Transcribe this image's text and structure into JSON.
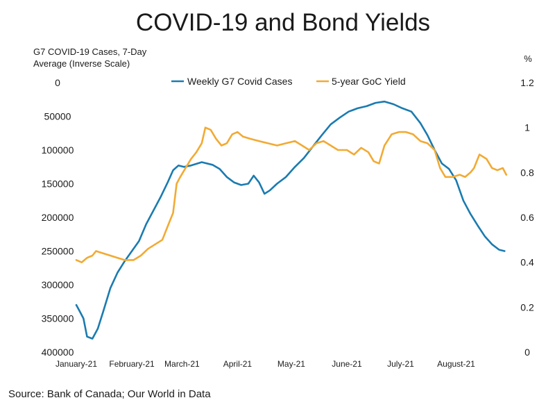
{
  "chart_data": {
    "type": "line",
    "title": "COVID-19 and Bond Yields",
    "ylabel_left": [
      "G7 COVID-19 Cases, 7-Day",
      "Average (Inverse Scale)"
    ],
    "ylabel_right": "%",
    "source": "Source: Bank of Canada; Our World in Data",
    "legend_position": "top",
    "grid": false,
    "x_range": [
      "2021-01-01",
      "2021-08-31"
    ],
    "x_ticks": [
      {
        "label": "January-21",
        "date": "2021-01-01"
      },
      {
        "label": "February-21",
        "date": "2021-02-01"
      },
      {
        "label": "March-21",
        "date": "2021-03-01"
      },
      {
        "label": "April-21",
        "date": "2021-04-01"
      },
      {
        "label": "May-21",
        "date": "2021-05-01"
      },
      {
        "label": "June-21",
        "date": "2021-06-01"
      },
      {
        "label": "July-21",
        "date": "2021-07-01"
      },
      {
        "label": "August-21",
        "date": "2021-08-01"
      }
    ],
    "y_left": {
      "inverse": true,
      "range": [
        0,
        400000
      ],
      "ticks": [
        "0",
        "50000",
        "100000",
        "150000",
        "200000",
        "250000",
        "300000",
        "350000",
        "400000"
      ]
    },
    "y_right": {
      "range": [
        0,
        1.2
      ],
      "ticks": [
        "0",
        "0.2",
        "0.4",
        "0.6",
        "0.8",
        "1",
        "1.2"
      ]
    },
    "series": [
      {
        "name": "Weekly G7 Covid Cases",
        "axis": "left",
        "color": "#1a7bb0",
        "points": [
          [
            "2021-01-01",
            330000
          ],
          [
            "2021-01-03",
            340000
          ],
          [
            "2021-01-05",
            350000
          ],
          [
            "2021-01-07",
            377000
          ],
          [
            "2021-01-10",
            380000
          ],
          [
            "2021-01-13",
            365000
          ],
          [
            "2021-01-16",
            340000
          ],
          [
            "2021-01-20",
            305000
          ],
          [
            "2021-01-24",
            282000
          ],
          [
            "2021-01-28",
            265000
          ],
          [
            "2021-02-01",
            250000
          ],
          [
            "2021-02-05",
            235000
          ],
          [
            "2021-02-09",
            210000
          ],
          [
            "2021-02-13",
            190000
          ],
          [
            "2021-02-17",
            170000
          ],
          [
            "2021-02-21",
            148000
          ],
          [
            "2021-02-24",
            130000
          ],
          [
            "2021-02-27",
            123000
          ],
          [
            "2021-03-02",
            125000
          ],
          [
            "2021-03-06",
            123000
          ],
          [
            "2021-03-12",
            118000
          ],
          [
            "2021-03-18",
            122000
          ],
          [
            "2021-03-22",
            128000
          ],
          [
            "2021-03-26",
            140000
          ],
          [
            "2021-03-30",
            148000
          ],
          [
            "2021-04-03",
            152000
          ],
          [
            "2021-04-07",
            150000
          ],
          [
            "2021-04-10",
            138000
          ],
          [
            "2021-04-13",
            148000
          ],
          [
            "2021-04-16",
            165000
          ],
          [
            "2021-04-19",
            160000
          ],
          [
            "2021-04-23",
            150000
          ],
          [
            "2021-04-28",
            140000
          ],
          [
            "2021-05-03",
            125000
          ],
          [
            "2021-05-08",
            112000
          ],
          [
            "2021-05-13",
            95000
          ],
          [
            "2021-05-18",
            78000
          ],
          [
            "2021-05-23",
            62000
          ],
          [
            "2021-05-28",
            52000
          ],
          [
            "2021-06-02",
            43000
          ],
          [
            "2021-06-07",
            38000
          ],
          [
            "2021-06-12",
            35000
          ],
          [
            "2021-06-17",
            30000
          ],
          [
            "2021-06-22",
            28000
          ],
          [
            "2021-06-27",
            32000
          ],
          [
            "2021-07-02",
            38000
          ],
          [
            "2021-07-07",
            43000
          ],
          [
            "2021-07-12",
            60000
          ],
          [
            "2021-07-16",
            78000
          ],
          [
            "2021-07-20",
            100000
          ],
          [
            "2021-07-24",
            120000
          ],
          [
            "2021-07-28",
            128000
          ],
          [
            "2021-08-01",
            145000
          ],
          [
            "2021-08-05",
            175000
          ],
          [
            "2021-08-09",
            195000
          ],
          [
            "2021-08-13",
            212000
          ],
          [
            "2021-08-17",
            228000
          ],
          [
            "2021-08-21",
            240000
          ],
          [
            "2021-08-25",
            248000
          ],
          [
            "2021-08-28",
            250000
          ]
        ]
      },
      {
        "name": "5-year GoC Yield",
        "axis": "right",
        "color": "#f2aa33",
        "points": [
          [
            "2021-01-01",
            0.41
          ],
          [
            "2021-01-04",
            0.4
          ],
          [
            "2021-01-07",
            0.42
          ],
          [
            "2021-01-10",
            0.43
          ],
          [
            "2021-01-12",
            0.45
          ],
          [
            "2021-01-16",
            0.44
          ],
          [
            "2021-01-20",
            0.43
          ],
          [
            "2021-01-24",
            0.42
          ],
          [
            "2021-01-28",
            0.41
          ],
          [
            "2021-02-02",
            0.41
          ],
          [
            "2021-02-06",
            0.43
          ],
          [
            "2021-02-10",
            0.46
          ],
          [
            "2021-02-14",
            0.48
          ],
          [
            "2021-02-18",
            0.5
          ],
          [
            "2021-02-21",
            0.56
          ],
          [
            "2021-02-24",
            0.62
          ],
          [
            "2021-02-26",
            0.75
          ],
          [
            "2021-02-28",
            0.78
          ],
          [
            "2021-03-03",
            0.82
          ],
          [
            "2021-03-06",
            0.86
          ],
          [
            "2021-03-09",
            0.89
          ],
          [
            "2021-03-12",
            0.93
          ],
          [
            "2021-03-14",
            1.0
          ],
          [
            "2021-03-17",
            0.99
          ],
          [
            "2021-03-20",
            0.95
          ],
          [
            "2021-03-23",
            0.92
          ],
          [
            "2021-03-26",
            0.93
          ],
          [
            "2021-03-29",
            0.97
          ],
          [
            "2021-04-01",
            0.98
          ],
          [
            "2021-04-04",
            0.96
          ],
          [
            "2021-04-08",
            0.95
          ],
          [
            "2021-04-13",
            0.94
          ],
          [
            "2021-04-18",
            0.93
          ],
          [
            "2021-04-23",
            0.92
          ],
          [
            "2021-04-28",
            0.93
          ],
          [
            "2021-05-03",
            0.94
          ],
          [
            "2021-05-07",
            0.92
          ],
          [
            "2021-05-11",
            0.9
          ],
          [
            "2021-05-15",
            0.93
          ],
          [
            "2021-05-19",
            0.94
          ],
          [
            "2021-05-23",
            0.92
          ],
          [
            "2021-05-27",
            0.9
          ],
          [
            "2021-06-01",
            0.9
          ],
          [
            "2021-06-05",
            0.88
          ],
          [
            "2021-06-09",
            0.91
          ],
          [
            "2021-06-13",
            0.89
          ],
          [
            "2021-06-16",
            0.85
          ],
          [
            "2021-06-19",
            0.84
          ],
          [
            "2021-06-22",
            0.92
          ],
          [
            "2021-06-26",
            0.97
          ],
          [
            "2021-06-30",
            0.98
          ],
          [
            "2021-07-04",
            0.98
          ],
          [
            "2021-07-08",
            0.97
          ],
          [
            "2021-07-12",
            0.94
          ],
          [
            "2021-07-16",
            0.93
          ],
          [
            "2021-07-20",
            0.9
          ],
          [
            "2021-07-23",
            0.82
          ],
          [
            "2021-07-26",
            0.78
          ],
          [
            "2021-07-30",
            0.78
          ],
          [
            "2021-08-03",
            0.79
          ],
          [
            "2021-08-06",
            0.78
          ],
          [
            "2021-08-09",
            0.8
          ],
          [
            "2021-08-11",
            0.82
          ],
          [
            "2021-08-14",
            0.88
          ],
          [
            "2021-08-18",
            0.86
          ],
          [
            "2021-08-21",
            0.82
          ],
          [
            "2021-08-24",
            0.81
          ],
          [
            "2021-08-27",
            0.82
          ],
          [
            "2021-08-29",
            0.79
          ]
        ]
      }
    ]
  }
}
